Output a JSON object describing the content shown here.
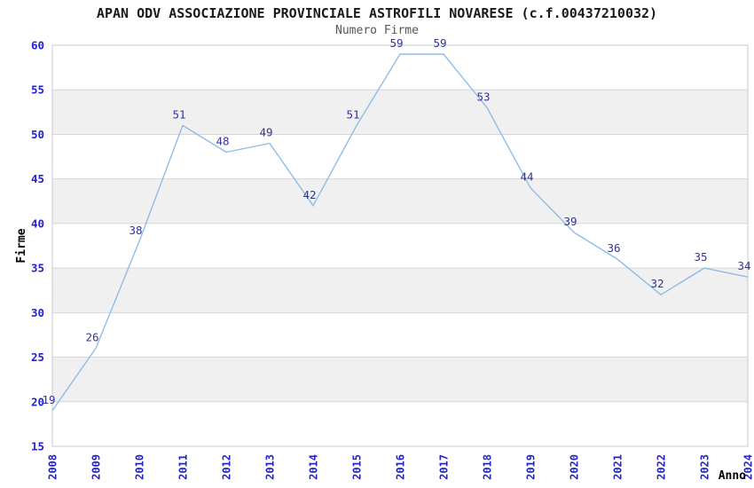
{
  "chart_data": {
    "type": "line",
    "title": "APAN ODV ASSOCIAZIONE PROVINCIALE ASTROFILI NOVARESE (c.f.00437210032)",
    "subtitle": "Numero Firme",
    "xlabel": "Anno",
    "ylabel": "Firme",
    "categories": [
      "2008",
      "2009",
      "2010",
      "2011",
      "2012",
      "2013",
      "2014",
      "2015",
      "2016",
      "2017",
      "2018",
      "2019",
      "2020",
      "2021",
      "2022",
      "2023",
      "2024"
    ],
    "series": [
      {
        "name": "Numero Firme",
        "values": [
          19,
          26,
          38,
          51,
          48,
          49,
          42,
          51,
          59,
          59,
          53,
          44,
          39,
          36,
          32,
          35,
          34
        ]
      }
    ],
    "point_labels_visible": true,
    "ylim": [
      15,
      60
    ],
    "ytick_step": 5,
    "yticks": [
      15,
      20,
      25,
      30,
      35,
      40,
      45,
      50,
      55,
      60
    ],
    "grid": "horizontal gridlines every 5 units with alternating light-gray bands",
    "legend": "none",
    "markers": "none",
    "colors": {
      "line": "#8FBCE8",
      "point_labels": "#333399",
      "axis_tick_labels": "#2323CC",
      "band_fill": "#F0F0F0",
      "gridline": "#D6D6D6",
      "plot_border": "#C8C8C8",
      "title": "#1A1A1A",
      "subtitle": "#555555",
      "background": "#FFFFFF"
    }
  }
}
